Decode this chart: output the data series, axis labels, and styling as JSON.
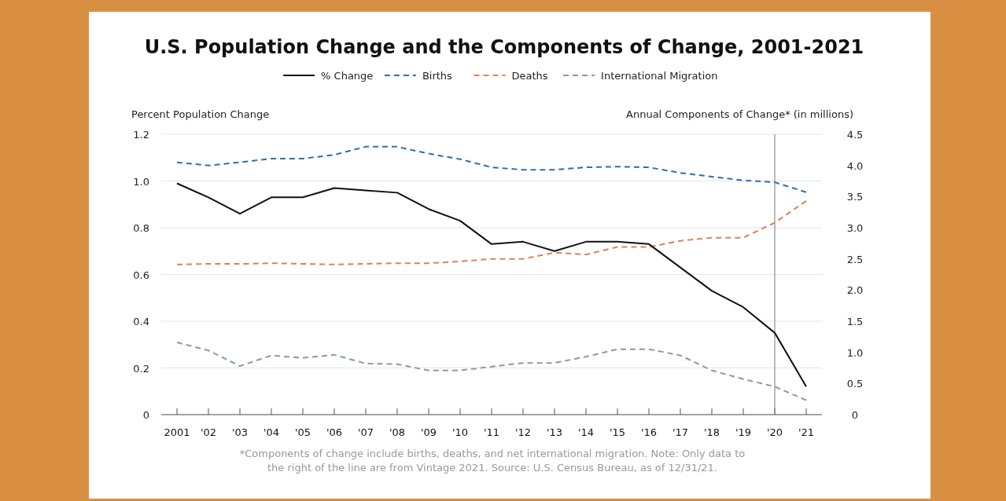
{
  "chart_data": {
    "type": "line",
    "title": "U.S. Population Change and the Components of Change, 2001-2021",
    "ylabel": "Percent Population Change",
    "y2label": "Annual Components of Change* (in millions)",
    "x": [
      2001,
      2002,
      2003,
      2004,
      2005,
      2006,
      2007,
      2008,
      2009,
      2010,
      2011,
      2012,
      2013,
      2014,
      2015,
      2016,
      2017,
      2018,
      2019,
      2020,
      2021
    ],
    "xlim": [
      2000.5,
      2021.5
    ],
    "xticks": [
      {
        "value": 2001,
        "label": "2001"
      },
      {
        "value": 2002,
        "label": "'02"
      },
      {
        "value": 2003,
        "label": "'03"
      },
      {
        "value": 2004,
        "label": "'04"
      },
      {
        "value": 2005,
        "label": "'05"
      },
      {
        "value": 2006,
        "label": "'06"
      },
      {
        "value": 2007,
        "label": "'07"
      },
      {
        "value": 2008,
        "label": "'08"
      },
      {
        "value": 2009,
        "label": "'09"
      },
      {
        "value": 2010,
        "label": "'10"
      },
      {
        "value": 2011,
        "label": "'11"
      },
      {
        "value": 2012,
        "label": "'12"
      },
      {
        "value": 2013,
        "label": "'13"
      },
      {
        "value": 2014,
        "label": "'14"
      },
      {
        "value": 2015,
        "label": "'15"
      },
      {
        "value": 2016,
        "label": "'16"
      },
      {
        "value": 2017,
        "label": "'17"
      },
      {
        "value": 2018,
        "label": "'18"
      },
      {
        "value": 2019,
        "label": "'19"
      },
      {
        "value": 2020,
        "label": "'20"
      },
      {
        "value": 2021,
        "label": "'21"
      }
    ],
    "ylim": [
      0,
      1.2
    ],
    "yticks": [
      0,
      0.2,
      0.4,
      0.6,
      0.8,
      {
        "value": 1.0,
        "label": "1.0"
      },
      1.2
    ],
    "y2lim": [
      0,
      4.5
    ],
    "y2ticks": [
      0,
      0.5,
      {
        "value": 1.0,
        "label": "1.0"
      },
      1.5,
      {
        "value": 2.0,
        "label": "2.0"
      },
      2.5,
      {
        "value": 3.0,
        "label": "3.0"
      },
      3.5,
      {
        "value": 4.0,
        "label": "4.0"
      },
      4.5
    ],
    "series": [
      {
        "name": "% Change",
        "color": "#111111",
        "line_style": "solid",
        "values": [
          0.99,
          0.93,
          0.86,
          0.93,
          0.93,
          0.97,
          0.96,
          0.95,
          0.88,
          0.83,
          0.73,
          0.74,
          0.7,
          0.74,
          0.74,
          0.73,
          0.63,
          0.53,
          0.46,
          0.35,
          0.12
        ]
      },
      {
        "name": "Births",
        "color": "#2f6fa8",
        "line_style": "dashed",
        "axis": "y2",
        "values": [
          4.05,
          4.0,
          4.05,
          4.11,
          4.11,
          4.17,
          4.3,
          4.3,
          4.19,
          4.1,
          3.97,
          3.93,
          3.93,
          3.97,
          3.98,
          3.97,
          3.88,
          3.82,
          3.76,
          3.73,
          3.57
        ]
      },
      {
        "name": "Deaths",
        "color": "#d9825a",
        "line_style": "dashed",
        "axis": "y2",
        "values": [
          2.41,
          2.42,
          2.42,
          2.43,
          2.42,
          2.41,
          2.42,
          2.43,
          2.43,
          2.46,
          2.5,
          2.5,
          2.6,
          2.57,
          2.69,
          2.69,
          2.79,
          2.84,
          2.84,
          3.08,
          3.43
        ]
      },
      {
        "name": "International Migration",
        "color": "#8a99a6",
        "line_style": "dashed",
        "axis": "y2",
        "values": [
          1.16,
          1.03,
          0.78,
          0.95,
          0.91,
          0.96,
          0.82,
          0.81,
          0.71,
          0.71,
          0.77,
          0.83,
          0.83,
          0.93,
          1.05,
          1.05,
          0.95,
          0.71,
          0.57,
          0.45,
          0.23
        ]
      }
    ],
    "ref_lines": [
      {
        "axis": "x",
        "value": 2020,
        "color": "#777777"
      }
    ],
    "grid": "y",
    "legend": "top",
    "annotations": [
      "*Components of change include births, deaths, and net international migration.  Note: Only data to the right of the line are from Vintage 2021.  Source: U.S. Census Bureau, as of 12/31/21."
    ]
  }
}
